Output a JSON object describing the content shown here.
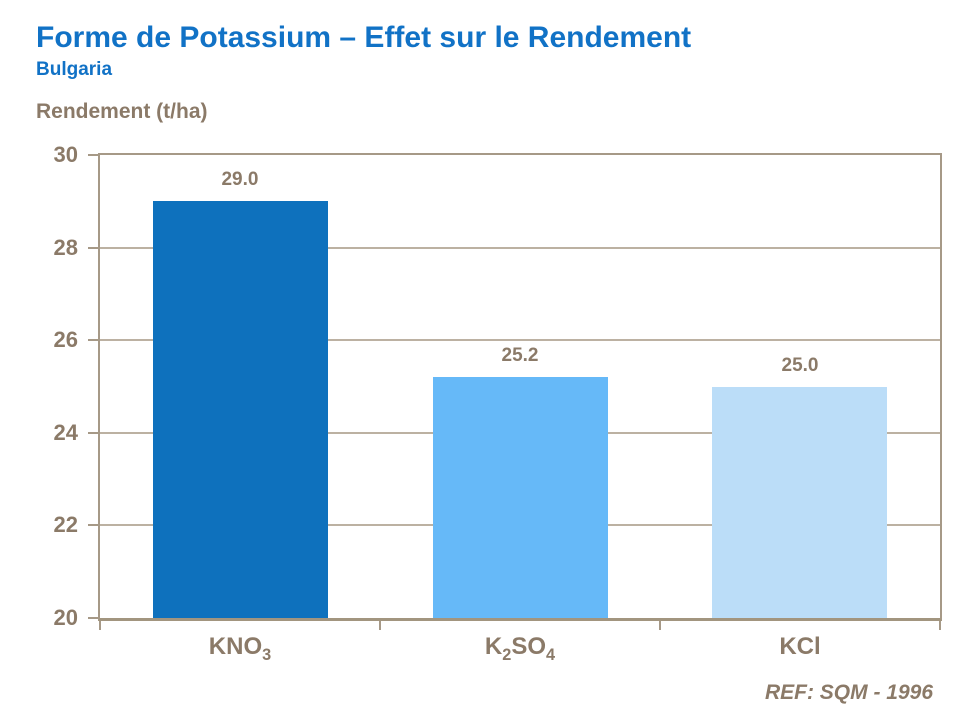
{
  "header": {
    "title": "Forme de Potassium – Effet sur le Rendement",
    "subtitle": "Bulgaria"
  },
  "footer": {
    "reference": "REF: SQM - 1996"
  },
  "colors": {
    "title_blue": "#1172C6",
    "text_brown": "#8B7A68",
    "axis_tan": "#A69987",
    "gridline_tan": "#BCB1A2"
  },
  "chart_data": {
    "type": "bar",
    "title": "Forme de Potassium – Effet sur le Rendement",
    "subtitle": "Bulgaria",
    "ylabel": "Rendement (t/ha)",
    "xlabel": "",
    "ylim": [
      20,
      30
    ],
    "yticks": [
      30,
      28,
      26,
      24,
      22,
      20
    ],
    "grid": "horizontal",
    "legend": "none",
    "categories": [
      {
        "name": "KNO3",
        "parts": [
          {
            "t": "KNO"
          },
          {
            "t": "3",
            "sub": true
          }
        ]
      },
      {
        "name": "K2SO4",
        "parts": [
          {
            "t": "K"
          },
          {
            "t": "2",
            "sub": true
          },
          {
            "t": "SO"
          },
          {
            "t": "4",
            "sub": true
          }
        ]
      },
      {
        "name": "KCl",
        "parts": [
          {
            "t": "KCl"
          }
        ]
      }
    ],
    "values": [
      29.0,
      25.2,
      25.0
    ],
    "value_labels": [
      "29.0",
      "25.2",
      "25.0"
    ],
    "bar_colors": [
      "#0E71BD",
      "#66B9F8",
      "#BBDDF8"
    ]
  }
}
